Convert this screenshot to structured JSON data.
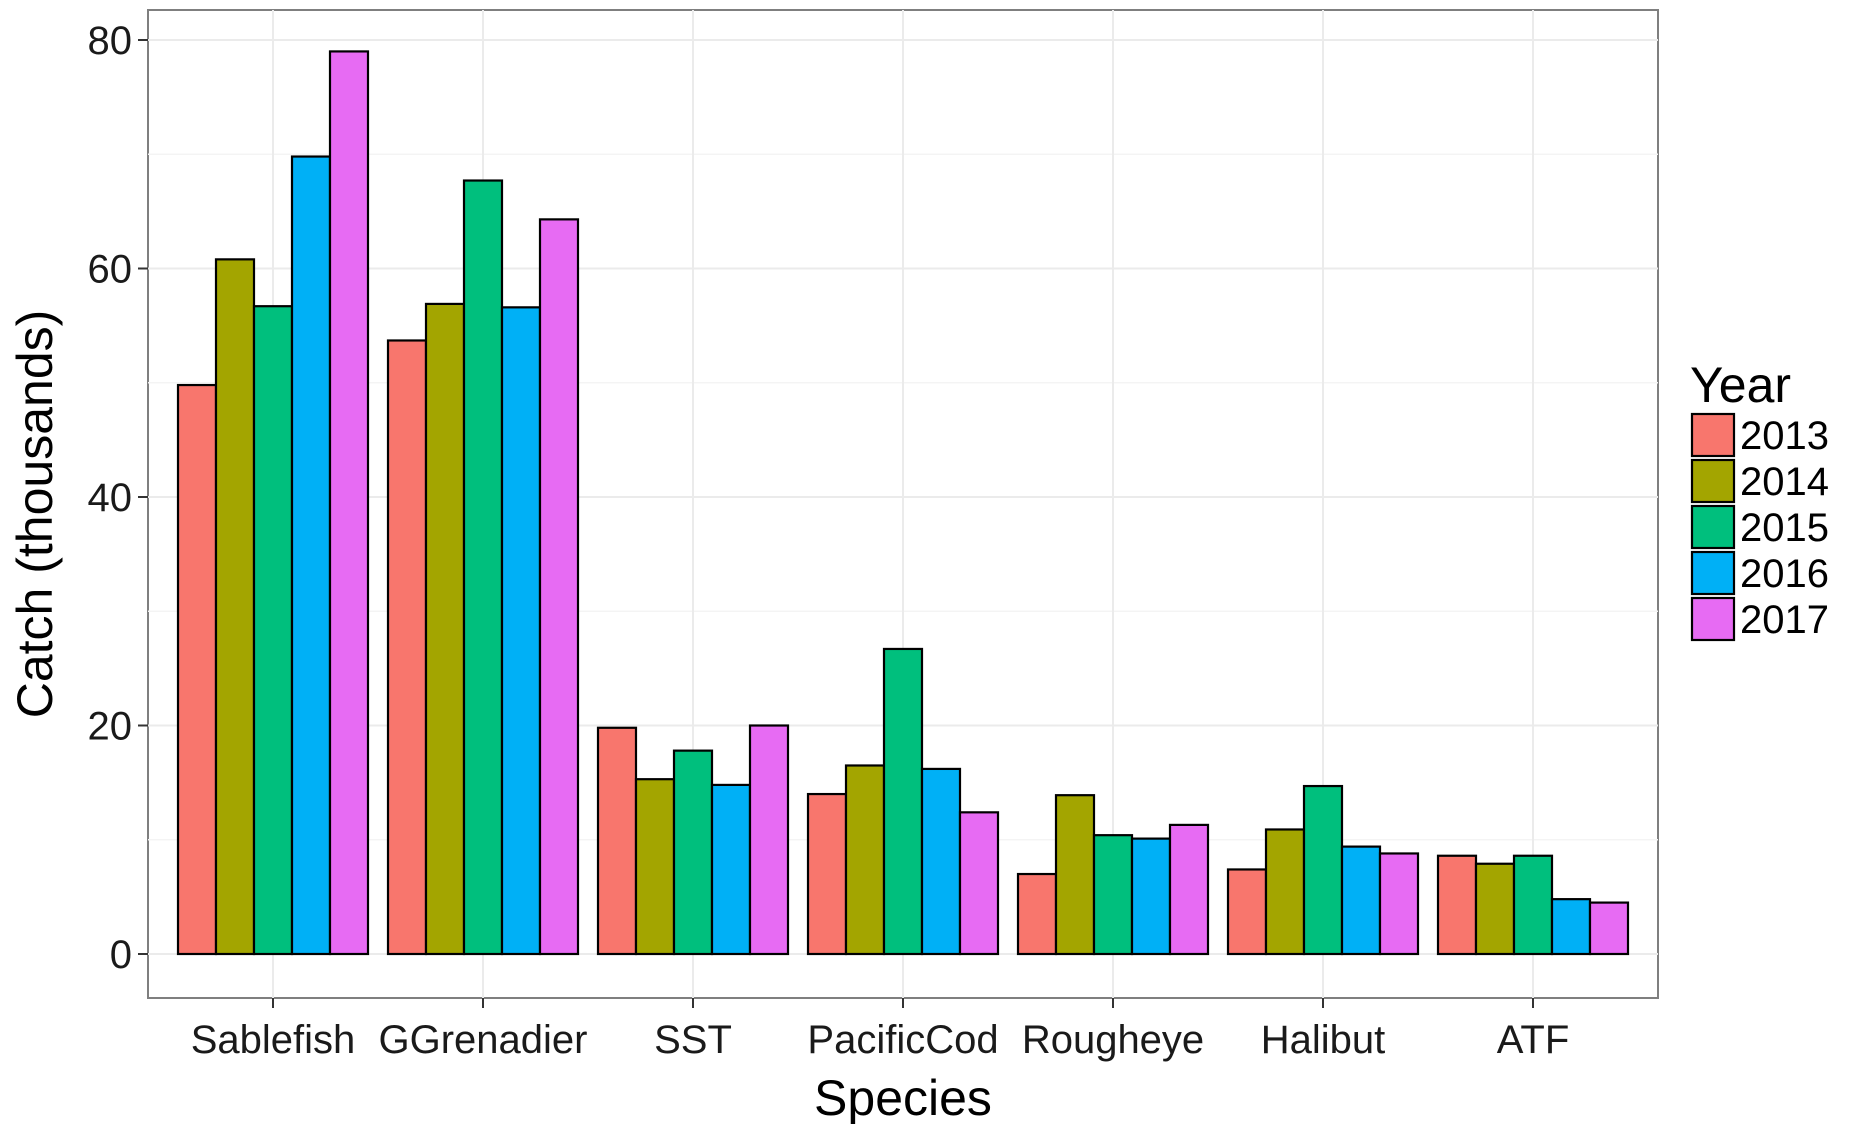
{
  "chart_data": {
    "type": "bar",
    "xlabel": "Species",
    "ylabel": "Catch (thousands)",
    "ylim": [
      0,
      80
    ],
    "yticks": [
      0,
      20,
      40,
      60,
      80
    ],
    "grid": true,
    "legend_title": "Year",
    "legend_position": "right",
    "categories": [
      "Sablefish",
      "GGrenadier",
      "SST",
      "PacificCod",
      "Rougheye",
      "Halibut",
      "ATF"
    ],
    "series": [
      {
        "name": "2013",
        "color": "#F8766D",
        "values": [
          49.8,
          53.7,
          19.8,
          14.0,
          7.0,
          7.4,
          8.6
        ]
      },
      {
        "name": "2014",
        "color": "#A3A500",
        "values": [
          60.8,
          56.9,
          15.3,
          16.5,
          13.9,
          10.9,
          7.9
        ]
      },
      {
        "name": "2015",
        "color": "#00BF7D",
        "values": [
          56.7,
          67.7,
          17.8,
          26.7,
          10.4,
          14.7,
          8.6
        ]
      },
      {
        "name": "2016",
        "color": "#00B0F6",
        "values": [
          69.8,
          56.6,
          14.8,
          16.2,
          10.1,
          9.4,
          4.8
        ]
      },
      {
        "name": "2017",
        "color": "#E76BF3",
        "values": [
          79.0,
          64.3,
          20.0,
          12.4,
          11.3,
          8.8,
          4.5
        ]
      }
    ]
  }
}
